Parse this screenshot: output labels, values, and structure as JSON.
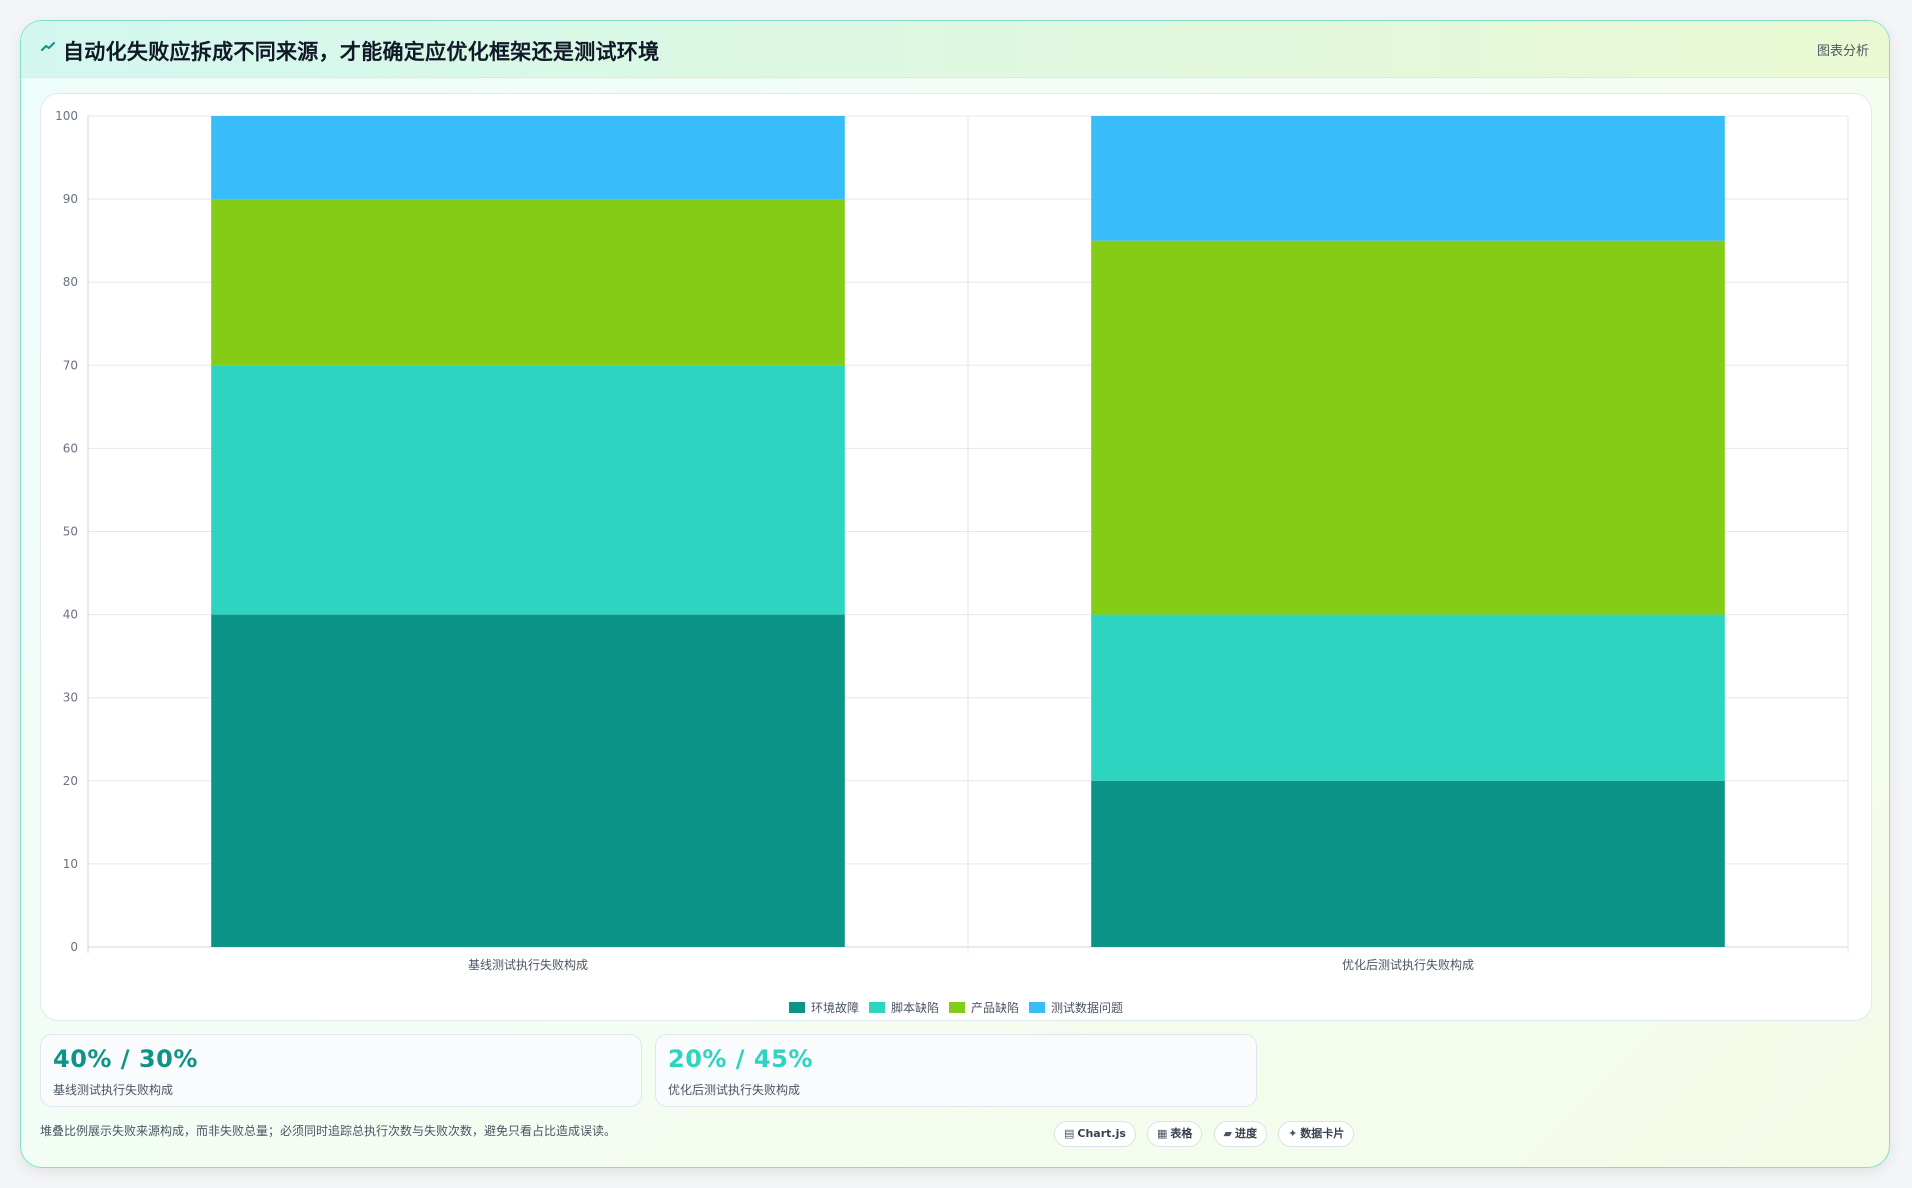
{
  "header": {
    "title": "自动化失败应拆成不同来源，才能确定应优化框架还是测试环境",
    "tag": "图表分析"
  },
  "colors": {
    "env": "#0d9488",
    "script": "#2dd4bf",
    "product": "#84cc16",
    "data": "#38bdf8",
    "accent_primary": "#0d9488",
    "accent_secondary": "#2dd4bf"
  },
  "chart_data": {
    "type": "bar",
    "stacked": true,
    "categories": [
      "基线测试执行失败构成",
      "优化后测试执行失败构成"
    ],
    "series": [
      {
        "name": "环境故障",
        "values": [
          40,
          20
        ],
        "color": "#0d9488"
      },
      {
        "name": "脚本缺陷",
        "values": [
          30,
          20
        ],
        "color": "#2dd4bf"
      },
      {
        "name": "产品缺陷",
        "values": [
          20,
          45
        ],
        "color": "#84cc16"
      },
      {
        "name": "测试数据问题",
        "values": [
          10,
          15
        ],
        "color": "#38bdf8"
      }
    ],
    "ylim": [
      0,
      100
    ],
    "yticks": [
      0,
      10,
      20,
      30,
      40,
      50,
      60,
      70,
      80,
      90,
      100
    ],
    "grid": true,
    "legend": "bottom"
  },
  "stats": [
    {
      "value": "40% / 30%",
      "label": "基线测试执行失败构成"
    },
    {
      "value": "20% / 45%",
      "label": "优化后测试执行失败构成"
    }
  ],
  "footnote": "堆叠比例展示失败来源构成，而非失败总量；必须同时追踪总执行次数与失败次数，避免只看占比造成误读。",
  "chips": [
    {
      "icon": "chart-icon",
      "glyph": "▤",
      "label": "Chart.js"
    },
    {
      "icon": "table-icon",
      "glyph": "▦",
      "label": "表格"
    },
    {
      "icon": "progress-icon",
      "glyph": "▰",
      "label": "进度"
    },
    {
      "icon": "card-icon",
      "glyph": "✦",
      "label": "数据卡片"
    }
  ]
}
